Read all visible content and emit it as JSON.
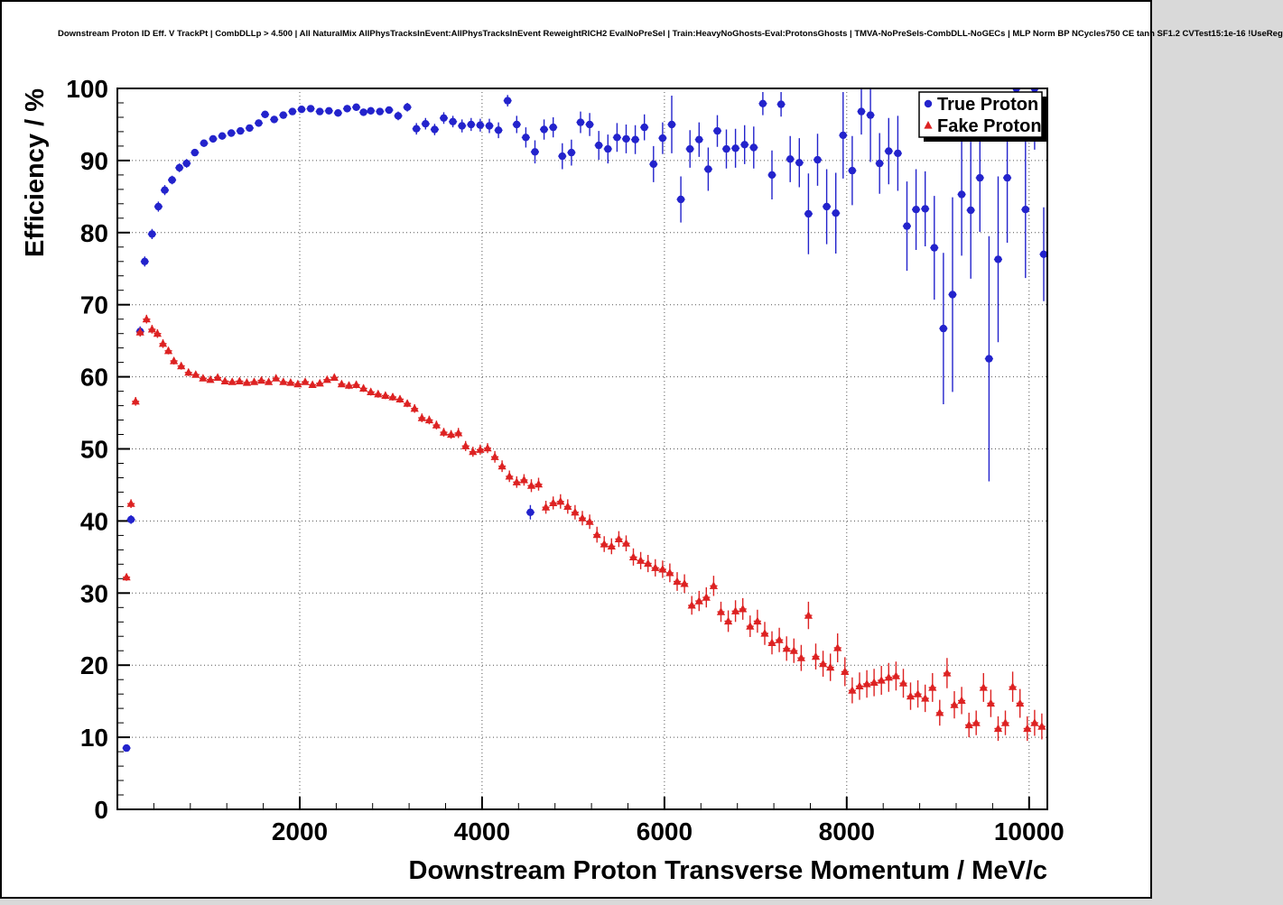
{
  "chart_data": {
    "type": "scatter",
    "title": "Downstream Proton ID Eff. V TrackPt | CombDLLp > 4.500 | All NaturalMix AllPhysTracksInEvent:AllPhysTracksInEvent ReweightRICH2 EvalNoPreSel | Train:HeavyNoGhosts-Eval:ProtonsGhosts | TMVA-NoPreSels-CombDLL-NoGECs | MLP Norm BP NCycles750 CE tanh SF1.2 CVTest15:1e-16 !UseReg",
    "xlabel": "Downstream Proton Transverse Momentum / MeV/c",
    "ylabel": "Efficiency / %",
    "xlim": [
      0,
      10200
    ],
    "ylim": [
      0,
      100
    ],
    "x_major_ticks": [
      2000,
      4000,
      6000,
      8000,
      10000
    ],
    "x_minor_step": 400,
    "y_major_step": 10,
    "y_minor_step": 2,
    "grid": "dotted",
    "legend": {
      "position": "top-right",
      "entries": [
        {
          "label": "True Proton",
          "marker": "circle",
          "color": "#2323cc"
        },
        {
          "label": "Fake Proton",
          "marker": "triangle",
          "color": "#dd2222"
        }
      ]
    },
    "series": [
      {
        "name": "True Proton",
        "marker": "circle",
        "color": "#2323cc",
        "xerr": 45,
        "points": [
          [
            100,
            8.5,
            0.4
          ],
          [
            150,
            40.2,
            0.6
          ],
          [
            250,
            66.3,
            0.7
          ],
          [
            300,
            76.0,
            0.7
          ],
          [
            380,
            79.8,
            0.7
          ],
          [
            450,
            83.6,
            0.7
          ],
          [
            520,
            85.9,
            0.7
          ],
          [
            600,
            87.3,
            0.6
          ],
          [
            680,
            89.0,
            0.6
          ],
          [
            760,
            89.6,
            0.6
          ],
          [
            850,
            91.1,
            0.5
          ],
          [
            950,
            92.4,
            0.5
          ],
          [
            1050,
            93.0,
            0.5
          ],
          [
            1150,
            93.4,
            0.5
          ],
          [
            1250,
            93.8,
            0.5
          ],
          [
            1350,
            94.1,
            0.5
          ],
          [
            1450,
            94.5,
            0.5
          ],
          [
            1550,
            95.2,
            0.5
          ],
          [
            1620,
            96.4,
            0.5
          ],
          [
            1720,
            95.7,
            0.5
          ],
          [
            1820,
            96.3,
            0.5
          ],
          [
            1920,
            96.8,
            0.4
          ],
          [
            2020,
            97.1,
            0.4
          ],
          [
            2120,
            97.2,
            0.4
          ],
          [
            2220,
            96.8,
            0.4
          ],
          [
            2320,
            96.9,
            0.4
          ],
          [
            2420,
            96.6,
            0.5
          ],
          [
            2520,
            97.2,
            0.5
          ],
          [
            2620,
            97.4,
            0.5
          ],
          [
            2700,
            96.7,
            0.5
          ],
          [
            2780,
            96.9,
            0.5
          ],
          [
            2880,
            96.8,
            0.5
          ],
          [
            2980,
            97.0,
            0.5
          ],
          [
            3080,
            96.2,
            0.6
          ],
          [
            3180,
            97.4,
            0.6
          ],
          [
            3280,
            94.4,
            0.8
          ],
          [
            3380,
            95.1,
            0.8
          ],
          [
            3480,
            94.3,
            0.8
          ],
          [
            3580,
            95.9,
            0.8
          ],
          [
            3680,
            95.4,
            0.8
          ],
          [
            3780,
            94.8,
            0.9
          ],
          [
            3880,
            95.0,
            0.9
          ],
          [
            3980,
            94.9,
            0.9
          ],
          [
            4080,
            94.8,
            1.0
          ],
          [
            4180,
            94.2,
            1.1
          ],
          [
            4280,
            98.3,
            0.8
          ],
          [
            4380,
            95.0,
            1.2
          ],
          [
            4480,
            93.2,
            1.4
          ],
          [
            4530,
            41.2,
            1.0
          ],
          [
            4580,
            91.2,
            1.6
          ],
          [
            4680,
            94.3,
            1.4
          ],
          [
            4780,
            94.6,
            1.4
          ],
          [
            4880,
            90.6,
            1.8
          ],
          [
            4980,
            91.1,
            1.8
          ],
          [
            5080,
            95.3,
            1.5
          ],
          [
            5180,
            95.0,
            1.6
          ],
          [
            5280,
            92.1,
            2.0
          ],
          [
            5380,
            91.6,
            2.0
          ],
          [
            5480,
            93.2,
            2.0
          ],
          [
            5580,
            93.0,
            2.0
          ],
          [
            5680,
            92.9,
            2.0
          ],
          [
            5780,
            94.6,
            1.8
          ],
          [
            5880,
            89.5,
            2.5
          ],
          [
            5980,
            93.1,
            2.2
          ],
          [
            6080,
            95.0,
            4.0
          ],
          [
            6180,
            84.6,
            3.2
          ],
          [
            6280,
            91.6,
            2.6
          ],
          [
            6380,
            92.9,
            2.4
          ],
          [
            6480,
            88.8,
            3.0
          ],
          [
            6580,
            94.1,
            2.2
          ],
          [
            6680,
            91.6,
            2.7
          ],
          [
            6780,
            91.7,
            2.7
          ],
          [
            6880,
            92.2,
            2.7
          ],
          [
            6980,
            91.8,
            2.9
          ],
          [
            7080,
            97.9,
            1.6
          ],
          [
            7180,
            88.0,
            3.4
          ],
          [
            7280,
            97.8,
            1.7
          ],
          [
            7380,
            90.2,
            3.2
          ],
          [
            7480,
            89.7,
            3.4
          ],
          [
            7580,
            82.6,
            5.6
          ],
          [
            7680,
            90.1,
            3.6
          ],
          [
            7780,
            83.6,
            5.2
          ],
          [
            7880,
            82.7,
            5.6
          ],
          [
            7960,
            93.5,
            6.0
          ],
          [
            8060,
            88.6,
            4.8
          ],
          [
            8160,
            96.8,
            3.2
          ],
          [
            8260,
            96.3,
            6.5
          ],
          [
            8360,
            89.6,
            4.2
          ],
          [
            8460,
            91.3,
            4.6
          ],
          [
            8560,
            91.0,
            5.2
          ],
          [
            8660,
            80.9,
            6.2
          ],
          [
            8760,
            83.2,
            5.6
          ],
          [
            8860,
            83.3,
            5.2
          ],
          [
            8960,
            77.9,
            7.2
          ],
          [
            9060,
            66.7,
            10.5
          ],
          [
            9160,
            71.4,
            13.5
          ],
          [
            9260,
            85.3,
            8.5
          ],
          [
            9360,
            83.1,
            9.5
          ],
          [
            9460,
            87.6,
            7.5
          ],
          [
            9560,
            62.5,
            17.0
          ],
          [
            9660,
            76.3,
            11.5
          ],
          [
            9760,
            87.6,
            9.0
          ],
          [
            9860,
            100.0,
            7.0
          ],
          [
            9960,
            83.2,
            9.5
          ],
          [
            10060,
            100.0,
            8.5
          ],
          [
            10160,
            77.0,
            6.5
          ]
        ]
      },
      {
        "name": "Fake Proton",
        "marker": "triangle",
        "color": "#dd2222",
        "xerr": 40,
        "points": [
          [
            100,
            32.2,
            0.5
          ],
          [
            150,
            42.4,
            0.6
          ],
          [
            200,
            56.6,
            0.6
          ],
          [
            250,
            66.2,
            0.6
          ],
          [
            320,
            68.0,
            0.6
          ],
          [
            380,
            66.6,
            0.6
          ],
          [
            440,
            66.0,
            0.6
          ],
          [
            500,
            64.6,
            0.6
          ],
          [
            560,
            63.6,
            0.5
          ],
          [
            620,
            62.2,
            0.5
          ],
          [
            700,
            61.5,
            0.5
          ],
          [
            780,
            60.6,
            0.5
          ],
          [
            860,
            60.3,
            0.4
          ],
          [
            940,
            59.8,
            0.4
          ],
          [
            1020,
            59.6,
            0.4
          ],
          [
            1100,
            59.9,
            0.4
          ],
          [
            1180,
            59.4,
            0.4
          ],
          [
            1260,
            59.3,
            0.4
          ],
          [
            1340,
            59.4,
            0.4
          ],
          [
            1420,
            59.2,
            0.4
          ],
          [
            1500,
            59.3,
            0.4
          ],
          [
            1580,
            59.5,
            0.4
          ],
          [
            1660,
            59.3,
            0.4
          ],
          [
            1740,
            59.8,
            0.4
          ],
          [
            1820,
            59.3,
            0.4
          ],
          [
            1900,
            59.2,
            0.4
          ],
          [
            1980,
            59.0,
            0.4
          ],
          [
            2060,
            59.3,
            0.4
          ],
          [
            2140,
            58.9,
            0.4
          ],
          [
            2220,
            59.1,
            0.4
          ],
          [
            2300,
            59.6,
            0.4
          ],
          [
            2380,
            59.9,
            0.4
          ],
          [
            2460,
            59.0,
            0.4
          ],
          [
            2540,
            58.8,
            0.5
          ],
          [
            2620,
            58.9,
            0.5
          ],
          [
            2700,
            58.4,
            0.5
          ],
          [
            2780,
            57.9,
            0.5
          ],
          [
            2860,
            57.6,
            0.5
          ],
          [
            2940,
            57.4,
            0.5
          ],
          [
            3020,
            57.2,
            0.5
          ],
          [
            3100,
            56.9,
            0.5
          ],
          [
            3180,
            56.3,
            0.5
          ],
          [
            3260,
            55.6,
            0.6
          ],
          [
            3340,
            54.3,
            0.6
          ],
          [
            3420,
            54.0,
            0.6
          ],
          [
            3500,
            53.3,
            0.6
          ],
          [
            3580,
            52.3,
            0.6
          ],
          [
            3660,
            52.0,
            0.6
          ],
          [
            3740,
            52.2,
            0.7
          ],
          [
            3820,
            50.4,
            0.7
          ],
          [
            3900,
            49.6,
            0.7
          ],
          [
            3980,
            49.9,
            0.7
          ],
          [
            4060,
            50.1,
            0.7
          ],
          [
            4140,
            48.9,
            0.8
          ],
          [
            4220,
            47.6,
            0.8
          ],
          [
            4300,
            46.2,
            0.8
          ],
          [
            4380,
            45.4,
            0.8
          ],
          [
            4460,
            45.7,
            0.8
          ],
          [
            4540,
            44.9,
            0.9
          ],
          [
            4620,
            45.1,
            0.9
          ],
          [
            4700,
            41.9,
            0.9
          ],
          [
            4780,
            42.5,
            0.9
          ],
          [
            4860,
            42.7,
            1.0
          ],
          [
            4940,
            42.0,
            1.0
          ],
          [
            5020,
            41.2,
            1.0
          ],
          [
            5100,
            40.4,
            1.0
          ],
          [
            5180,
            39.9,
            1.0
          ],
          [
            5260,
            38.1,
            1.1
          ],
          [
            5340,
            36.8,
            1.1
          ],
          [
            5420,
            36.5,
            1.1
          ],
          [
            5500,
            37.5,
            1.1
          ],
          [
            5580,
            36.9,
            1.1
          ],
          [
            5660,
            35.0,
            1.2
          ],
          [
            5740,
            34.5,
            1.2
          ],
          [
            5820,
            34.1,
            1.2
          ],
          [
            5900,
            33.5,
            1.2
          ],
          [
            5980,
            33.3,
            1.2
          ],
          [
            6060,
            32.8,
            1.3
          ],
          [
            6140,
            31.6,
            1.3
          ],
          [
            6220,
            31.3,
            1.3
          ],
          [
            6300,
            28.3,
            1.3
          ],
          [
            6380,
            28.9,
            1.4
          ],
          [
            6460,
            29.4,
            1.4
          ],
          [
            6540,
            31.0,
            1.4
          ],
          [
            6620,
            27.4,
            1.4
          ],
          [
            6700,
            26.1,
            1.5
          ],
          [
            6780,
            27.5,
            1.5
          ],
          [
            6860,
            27.8,
            1.5
          ],
          [
            6940,
            25.4,
            1.5
          ],
          [
            7020,
            26.1,
            1.6
          ],
          [
            7100,
            24.4,
            1.6
          ],
          [
            7180,
            23.1,
            1.6
          ],
          [
            7260,
            23.5,
            1.7
          ],
          [
            7340,
            22.3,
            1.7
          ],
          [
            7420,
            22.0,
            1.7
          ],
          [
            7500,
            21.0,
            1.8
          ],
          [
            7580,
            26.9,
            1.9
          ],
          [
            7660,
            21.2,
            1.8
          ],
          [
            7740,
            20.2,
            1.8
          ],
          [
            7820,
            19.7,
            1.9
          ],
          [
            7900,
            22.4,
            2.0
          ],
          [
            7980,
            19.1,
            2.0
          ],
          [
            8060,
            16.5,
            1.8
          ],
          [
            8140,
            17.1,
            1.9
          ],
          [
            8220,
            17.4,
            1.9
          ],
          [
            8300,
            17.6,
            1.9
          ],
          [
            8380,
            17.9,
            2.0
          ],
          [
            8460,
            18.3,
            2.0
          ],
          [
            8540,
            18.5,
            2.0
          ],
          [
            8620,
            17.5,
            2.0
          ],
          [
            8700,
            15.7,
            1.9
          ],
          [
            8780,
            16.0,
            1.9
          ],
          [
            8860,
            15.4,
            1.9
          ],
          [
            8940,
            16.9,
            2.0
          ],
          [
            9020,
            13.4,
            1.8
          ],
          [
            9100,
            18.9,
            2.1
          ],
          [
            9180,
            14.5,
            1.9
          ],
          [
            9260,
            15.1,
            1.9
          ],
          [
            9340,
            11.7,
            1.7
          ],
          [
            9420,
            12.0,
            1.7
          ],
          [
            9500,
            16.9,
            2.0
          ],
          [
            9580,
            14.7,
            1.9
          ],
          [
            9660,
            11.2,
            1.7
          ],
          [
            9740,
            12.0,
            1.7
          ],
          [
            9820,
            17.0,
            2.1
          ],
          [
            9900,
            14.7,
            2.0
          ],
          [
            9980,
            11.2,
            1.7
          ],
          [
            10060,
            12.0,
            1.8
          ],
          [
            10140,
            11.5,
            1.8
          ]
        ]
      }
    ]
  }
}
